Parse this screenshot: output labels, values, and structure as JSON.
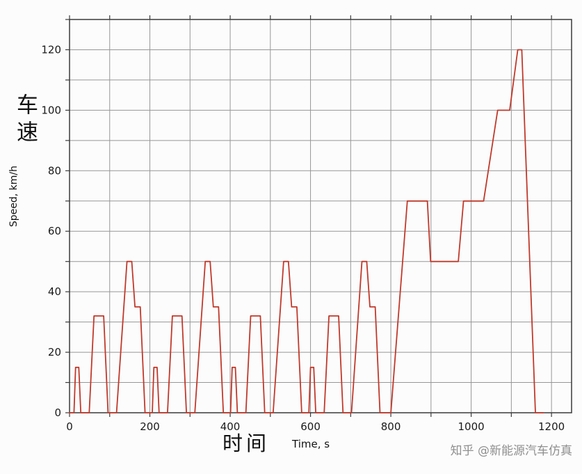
{
  "axes": {
    "y_label_cn": "车速",
    "y_label_en": "Speed, km/h",
    "x_label_cn": "时间",
    "x_label_en": "Time, s"
  },
  "watermark": "知乎 @新能源汽车仿真",
  "chart_data": {
    "type": "line",
    "title": "",
    "xlabel": "时间 Time, s",
    "ylabel": "车速 Speed, km/h",
    "xlim": [
      0,
      1250
    ],
    "ylim": [
      0,
      130
    ],
    "x_ticks": [
      0,
      200,
      400,
      600,
      800,
      1000,
      1200
    ],
    "y_ticks": [
      0,
      20,
      40,
      60,
      80,
      100,
      120
    ],
    "x_grid_step": 100,
    "y_grid_step": 10,
    "grid": true,
    "legend": "none",
    "colors": {
      "line": "#c0392b",
      "grid": "#969696",
      "border": "#3a3a3a",
      "text": "#1a1a1a"
    },
    "series": [
      {
        "name": "speed",
        "points": [
          [
            0,
            0
          ],
          [
            11,
            0
          ],
          [
            15,
            15
          ],
          [
            23,
            15
          ],
          [
            28,
            0
          ],
          [
            49,
            0
          ],
          [
            61,
            32
          ],
          [
            85,
            32
          ],
          [
            96,
            0
          ],
          [
            117,
            0
          ],
          [
            143,
            50
          ],
          [
            155,
            50
          ],
          [
            163,
            35
          ],
          [
            176,
            35
          ],
          [
            188,
            0
          ],
          [
            206,
            0
          ],
          [
            210,
            15
          ],
          [
            218,
            15
          ],
          [
            223,
            0
          ],
          [
            244,
            0
          ],
          [
            256,
            32
          ],
          [
            280,
            32
          ],
          [
            291,
            0
          ],
          [
            312,
            0
          ],
          [
            338,
            50
          ],
          [
            350,
            50
          ],
          [
            358,
            35
          ],
          [
            371,
            35
          ],
          [
            383,
            0
          ],
          [
            401,
            0
          ],
          [
            405,
            15
          ],
          [
            413,
            15
          ],
          [
            418,
            0
          ],
          [
            439,
            0
          ],
          [
            451,
            32
          ],
          [
            475,
            32
          ],
          [
            486,
            0
          ],
          [
            507,
            0
          ],
          [
            533,
            50
          ],
          [
            545,
            50
          ],
          [
            553,
            35
          ],
          [
            566,
            35
          ],
          [
            578,
            0
          ],
          [
            596,
            0
          ],
          [
            600,
            15
          ],
          [
            608,
            15
          ],
          [
            613,
            0
          ],
          [
            634,
            0
          ],
          [
            646,
            32
          ],
          [
            670,
            32
          ],
          [
            681,
            0
          ],
          [
            702,
            0
          ],
          [
            728,
            50
          ],
          [
            740,
            50
          ],
          [
            748,
            35
          ],
          [
            761,
            35
          ],
          [
            773,
            0
          ],
          [
            800,
            0
          ],
          [
            841,
            70
          ],
          [
            891,
            70
          ],
          [
            899,
            50
          ],
          [
            968,
            50
          ],
          [
            981,
            70
          ],
          [
            1031,
            70
          ],
          [
            1066,
            100
          ],
          [
            1096,
            100
          ],
          [
            1116,
            120
          ],
          [
            1126,
            120
          ],
          [
            1160,
            0
          ],
          [
            1180,
            0
          ]
        ]
      }
    ]
  }
}
